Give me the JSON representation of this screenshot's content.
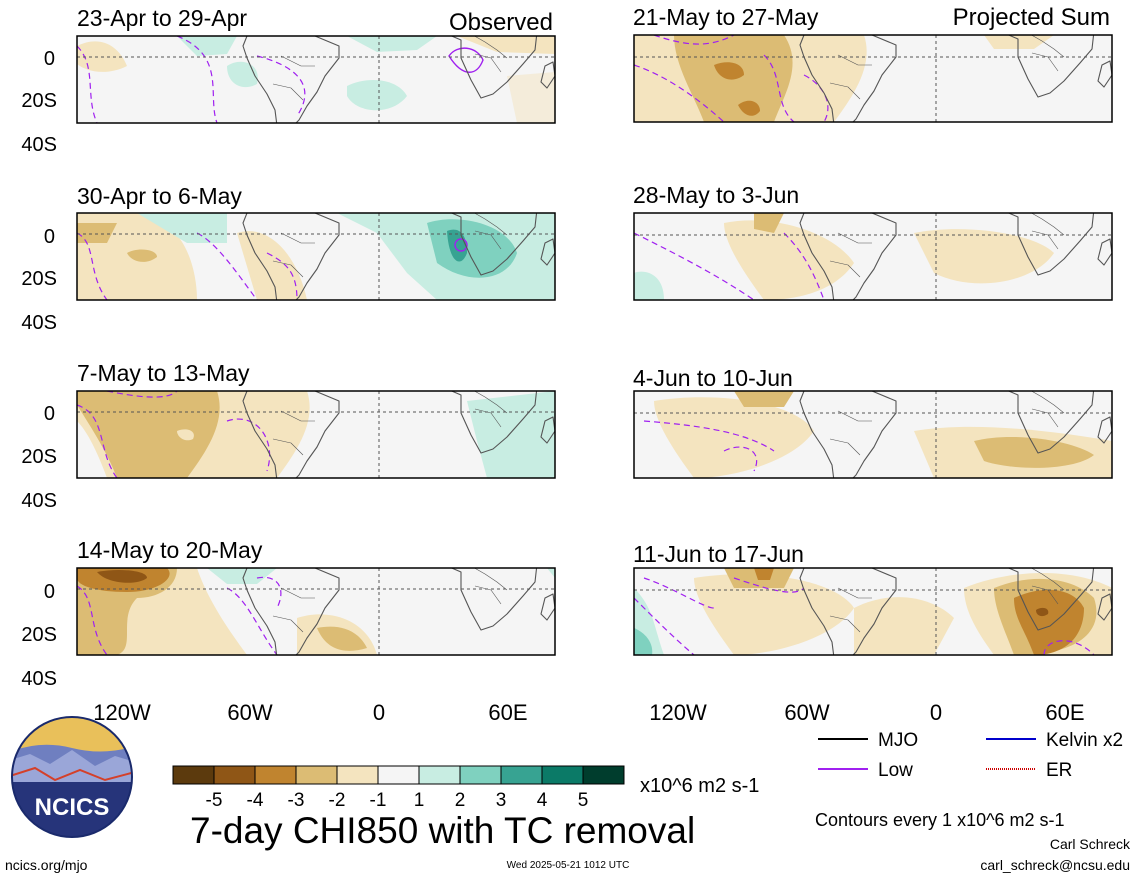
{
  "observed_label": "Observed",
  "projected_label": "Projected Sum",
  "panels": [
    {
      "period": "23-Apr to 29-Apr"
    },
    {
      "period": "30-Apr to 6-May"
    },
    {
      "period": "7-May to 13-May"
    },
    {
      "period": "14-May to 20-May"
    },
    {
      "period": "21-May to 27-May"
    },
    {
      "period": "28-May to 3-Jun"
    },
    {
      "period": "4-Jun to 10-Jun"
    },
    {
      "period": "11-Jun to 17-Jun"
    }
  ],
  "lat_labels": [
    "0",
    "20S",
    "40S"
  ],
  "lon_labels": [
    "120W",
    "60W",
    "0",
    "60E"
  ],
  "legend": {
    "items": [
      {
        "label": "MJO",
        "color": "#000000"
      },
      {
        "label": "Kelvin x2",
        "color": "#0000cc"
      },
      {
        "label": "Low",
        "color": "#a020f0"
      },
      {
        "label": "ER",
        "color": "#cc0000"
      }
    ],
    "contour_note": "Contours every 1 x10^6 m2 s-1"
  },
  "colorbar": {
    "labels": [
      "-5",
      "-4",
      "-3",
      "-2",
      "-1",
      "1",
      "2",
      "3",
      "4",
      "5"
    ],
    "unit": "x10^6 m2 s-1",
    "colors": [
      "#5c3a0d",
      "#8f5616",
      "#c0842f",
      "#dcbc74",
      "#f4e4bf",
      "#f5f5f5",
      "#c8ede2",
      "#7fd1bf",
      "#37a392",
      "#0b7a67",
      "#003d2d"
    ]
  },
  "main_title": "7-day CHI850 with TC removal",
  "logo_text": "NCICS",
  "footer": {
    "left": "ncics.org/mjo",
    "center": "Wed 2025-05-21 1012 UTC",
    "author": "Carl Schreck",
    "email": "carl_schreck@ncsu.edu"
  }
}
